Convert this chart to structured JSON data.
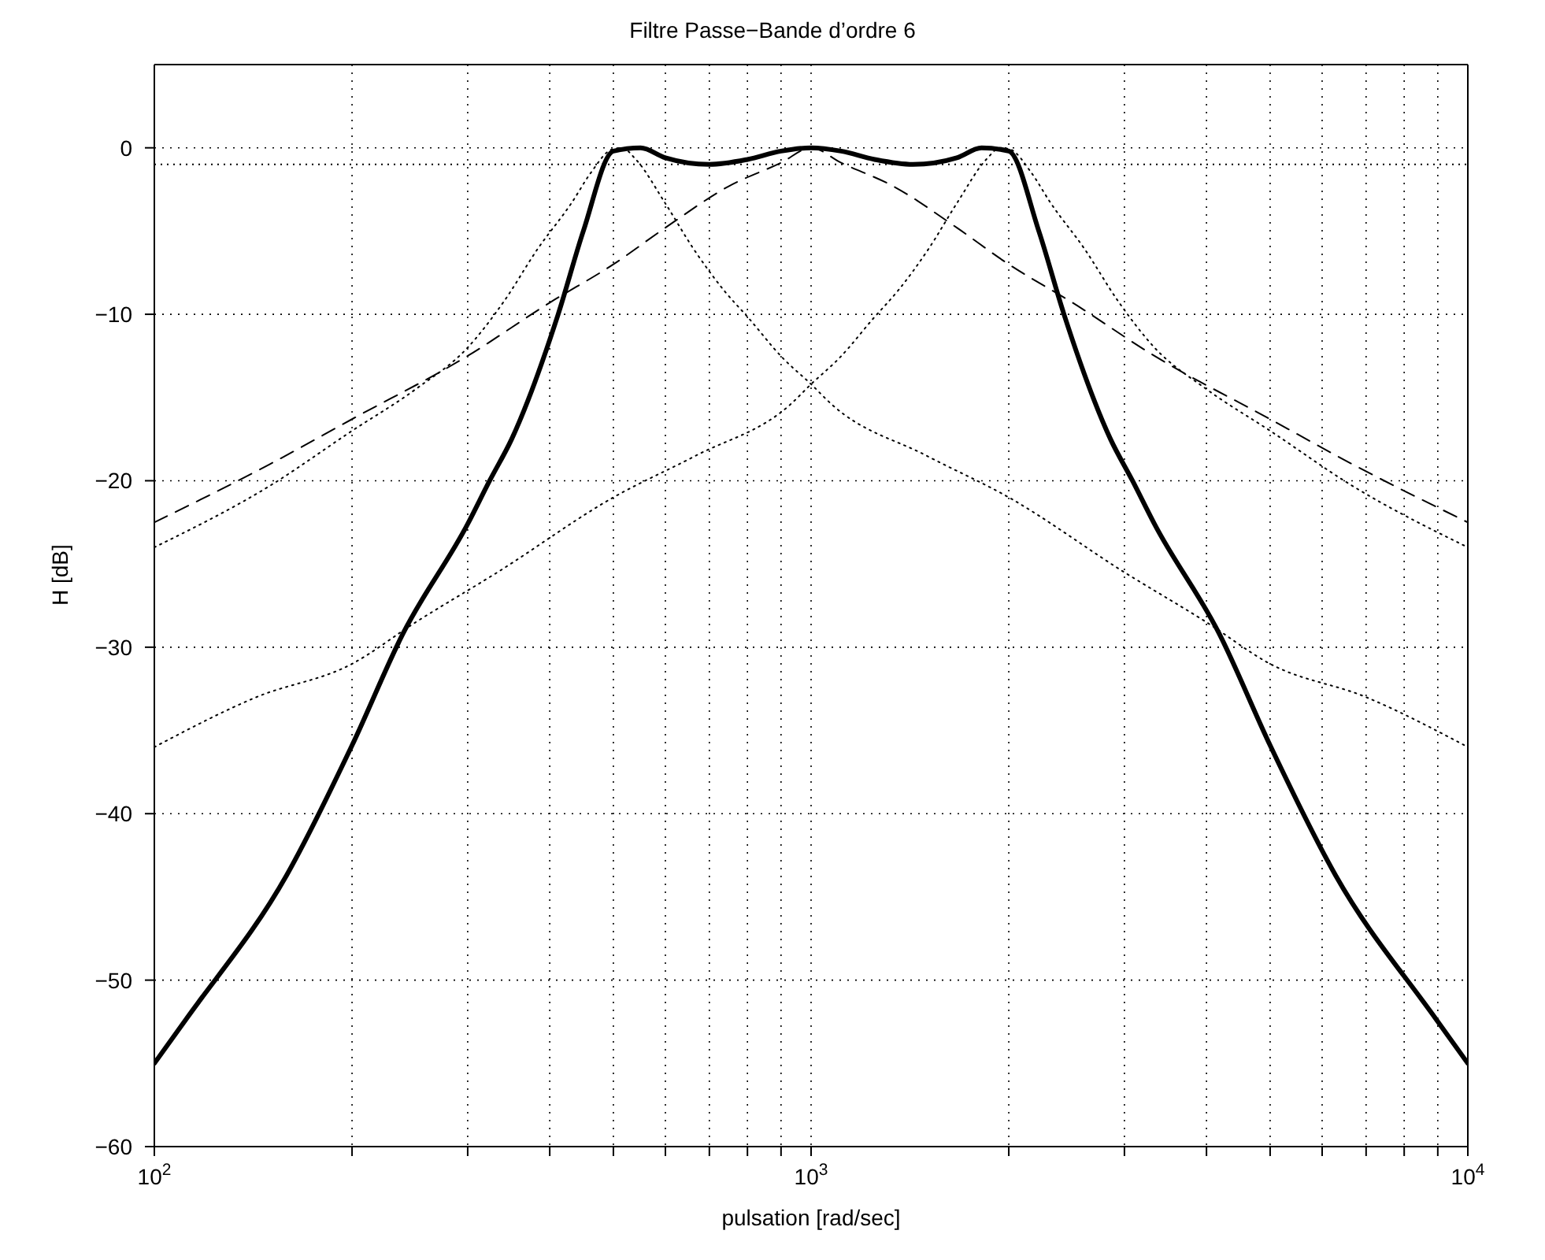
{
  "chart_data": {
    "type": "line",
    "title": "Filtre Passe−Bande d’ordre 6",
    "xlabel": "pulsation [rad/sec]",
    "ylabel": "H [dB]",
    "log": "x",
    "grid": true,
    "marker": "none",
    "xlim": [
      100,
      10000
    ],
    "ylim": [
      -60,
      5
    ],
    "xticks": [
      {
        "value": 100,
        "label": "10$^{2}$"
      },
      {
        "value": 200,
        "label": null
      },
      {
        "value": 300,
        "label": null
      },
      {
        "value": 400,
        "label": null
      },
      {
        "value": 500,
        "label": null
      },
      {
        "value": 600,
        "label": null
      },
      {
        "value": 700,
        "label": null
      },
      {
        "value": 800,
        "label": null
      },
      {
        "value": 900,
        "label": null
      },
      {
        "value": 1000,
        "label": "10$^{3}$"
      },
      {
        "value": 2000,
        "label": null
      },
      {
        "value": 3000,
        "label": null
      },
      {
        "value": 4000,
        "label": null
      },
      {
        "value": 5000,
        "label": null
      },
      {
        "value": 6000,
        "label": null
      },
      {
        "value": 7000,
        "label": null
      },
      {
        "value": 8000,
        "label": null
      },
      {
        "value": 9000,
        "label": null
      },
      {
        "value": 10000,
        "label": "10$^{4}$"
      }
    ],
    "yticks": [
      -60,
      -50,
      -40,
      -30,
      -20,
      -10,
      0
    ],
    "ref_lines": [
      {
        "axis": "y",
        "value": -1,
        "color": "#000000",
        "line_style": "dotted"
      }
    ],
    "series": [
      {
        "color": "#000000",
        "line_style": "dotted",
        "x": [
          100,
          150,
          200,
          250,
          300,
          341,
          383,
          432,
          462,
          497,
          515,
          541,
          599,
          663,
          738,
          802,
          904,
          1000,
          1074,
          1500,
          2000,
          3000,
          4000,
          5000,
          7000,
          10000
        ],
        "values": [
          -24,
          -20.3,
          -17,
          -14.5,
          -12,
          -9.2,
          -6.1,
          -3.3,
          -1.5,
          -0.1,
          0,
          -0.7,
          -3.3,
          -6.1,
          -8.6,
          -10.2,
          -12.6,
          -14.2,
          -15.4,
          -18.5,
          -21,
          -25.5,
          -28.5,
          -31,
          -33,
          -36
        ]
      },
      {
        "color": "#000000",
        "line_style": "dotted",
        "x": [
          100,
          143,
          200,
          250,
          333,
          500,
          667,
          931,
          1000,
          1106,
          1247,
          1355,
          1508,
          1669,
          1848,
          1942,
          2012,
          2165,
          2315,
          2611,
          2933,
          3333,
          4000,
          5000,
          6667,
          10000
        ],
        "values": [
          -36,
          -33,
          -31,
          -28.5,
          -25.5,
          -21,
          -18.5,
          -15.4,
          -14.2,
          -12.6,
          -10.2,
          -8.6,
          -6.1,
          -3.3,
          -0.7,
          0,
          -0.1,
          -1.5,
          -3.3,
          -6.1,
          -9.2,
          -12,
          -14.5,
          -17,
          -20.3,
          -24
        ]
      },
      {
        "color": "#000000",
        "line_style": "dashed",
        "x": [
          100,
          150,
          200,
          300,
          400,
          500,
          600,
          750,
          900,
          1000,
          1111,
          1333,
          1667,
          2000,
          2500,
          3333,
          5000,
          6667,
          10000
        ],
        "values": [
          -22.5,
          -19,
          -16.3,
          -12.5,
          -9.3,
          -7,
          -4.8,
          -2.3,
          -0.9,
          0,
          -0.9,
          -2.3,
          -4.8,
          -7,
          -9.3,
          -12.5,
          -16.3,
          -19,
          -22.5
        ]
      },
      {
        "color": "#000000",
        "line_style": "solid",
        "x": [
          100,
          112,
          159,
          200,
          239,
          300,
          324,
          350,
          412,
          450,
          500,
          550,
          600,
          700,
          800,
          900,
          1000,
          1111,
          1250,
          1429,
          1667,
          1818,
          2000,
          2222,
          2427,
          2857,
          3086,
          3333,
          4184,
          5000,
          6289,
          8929,
          10000
        ],
        "values": [
          -55,
          -52.3,
          -43.7,
          -35.9,
          -29.2,
          -22.6,
          -20,
          -17.5,
          -10,
          -5,
          -0.2,
          0,
          -0.6,
          -1,
          -0.7,
          -0.2,
          0,
          -0.2,
          -0.7,
          -1,
          -0.6,
          0,
          -0.2,
          -5,
          -10,
          -17.5,
          -20,
          -22.6,
          -29.2,
          -35.9,
          -43.7,
          -52.3,
          -55
        ]
      }
    ]
  }
}
